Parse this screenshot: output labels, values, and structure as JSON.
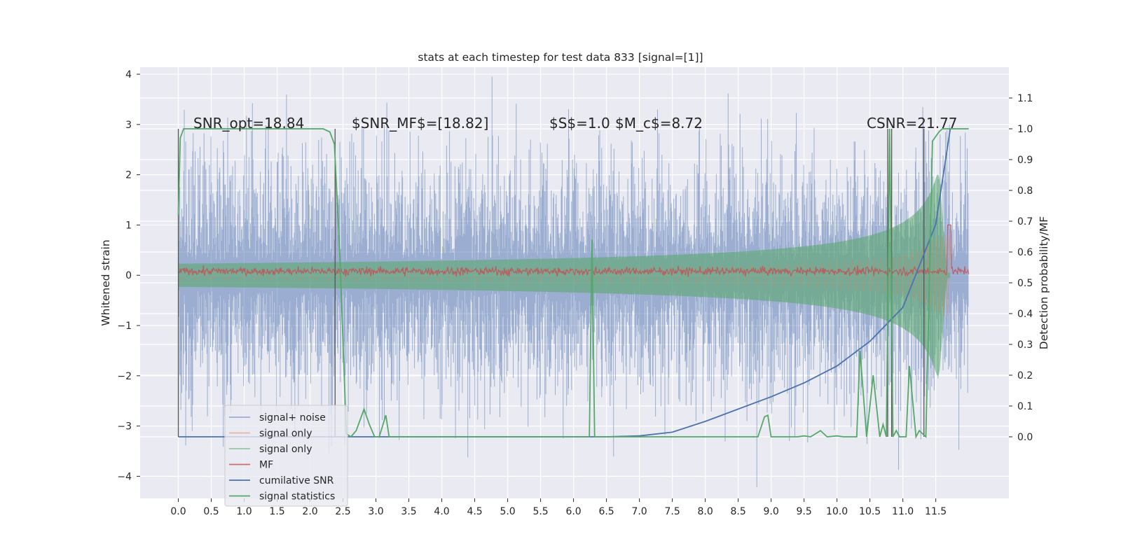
{
  "chart_data": {
    "type": "line",
    "title": "stats at each timestep for test data 833 [signal=[1]]",
    "ylabel": "Whitened strain",
    "ylabel_right": "Detection probability/MF",
    "xlim": [
      -0.58,
      12.61
    ],
    "ylim": [
      -4.44,
      4.14
    ],
    "ylim_right": [
      -0.2,
      1.2
    ],
    "x_ticks": [
      "0.0",
      "0.5",
      "1.0",
      "1.5",
      "2.0",
      "2.5",
      "3.0",
      "3.5",
      "4.0",
      "4.5",
      "5.0",
      "5.5",
      "6.0",
      "6.5",
      "7.0",
      "7.5",
      "8.0",
      "8.5",
      "9.0",
      "9.5",
      "10.0",
      "10.5",
      "11.0",
      "11.5"
    ],
    "y_ticks": [
      "4",
      "3",
      "2",
      "1",
      "0",
      "−1",
      "−2",
      "−3",
      "−4"
    ],
    "y_ticks_right": [
      "1.1",
      "1.0",
      "0.9",
      "0.8",
      "0.7",
      "0.6",
      "0.5",
      "0.4",
      "0.3",
      "0.2",
      "0.1",
      "0.0"
    ],
    "grid": true,
    "annotations": [
      "SNR_opt=18.84",
      "$SNR_MF$=[18.82]",
      "$S$=1.0",
      "$M_c$=8.72",
      "CSNR=21.77"
    ],
    "vertical_markers": [
      0.0,
      2.38,
      10.77,
      10.83,
      11.32
    ],
    "series": [
      {
        "name": "signal+ noise",
        "color": "#4c72b0",
        "role": "noise band",
        "approx_std": 0.85,
        "x_range": [
          0.0,
          12.0
        ]
      },
      {
        "name": "signal only",
        "color": "#dd8452",
        "role": "chirp",
        "amplitude_range": [
          0.05,
          1.9
        ],
        "x_range": [
          0.0,
          11.72
        ]
      },
      {
        "name": "signal only",
        "color": "#55a868",
        "role": "chirp band",
        "amplitude_range": [
          0.05,
          1.9
        ],
        "x_range": [
          0.0,
          11.72
        ]
      },
      {
        "name": "MF",
        "color": "#c44e52",
        "role": "matched filter",
        "approx_level": 0.08,
        "x_range": [
          0.0,
          12.0
        ]
      },
      {
        "name": "cumilative SNR",
        "color": "#4c72b0",
        "axis": "right",
        "x": [
          0.0,
          6.5,
          7.0,
          7.5,
          8.0,
          8.5,
          9.0,
          9.5,
          10.0,
          10.5,
          11.0,
          11.5,
          11.72
        ],
        "y": [
          0.0,
          0.0,
          0.003,
          0.015,
          0.05,
          0.09,
          0.13,
          0.175,
          0.23,
          0.31,
          0.42,
          0.69,
          1.0
        ]
      },
      {
        "name": "signal statistics",
        "color": "#55a868",
        "axis": "right",
        "x": [
          0.0,
          0.03,
          0.08,
          0.15,
          2.2,
          2.3,
          2.37,
          2.45,
          2.55,
          2.62,
          2.7,
          2.82,
          2.9,
          2.98,
          3.05,
          3.15,
          3.2,
          3.27,
          3.5,
          6.24,
          6.28,
          6.32,
          6.37,
          8.8,
          8.9,
          8.95,
          9.0,
          9.4,
          9.5,
          9.6,
          9.75,
          9.85,
          10.0,
          10.1,
          10.2,
          10.3,
          10.35,
          10.45,
          10.55,
          10.65,
          10.7,
          10.75,
          10.8,
          10.85,
          10.9,
          10.95,
          11.05,
          11.1,
          11.2,
          11.25,
          11.35,
          11.45,
          11.55,
          11.6,
          11.62,
          11.65,
          11.7,
          12.0
        ],
        "y": [
          0.72,
          0.97,
          1.0,
          1.0,
          1.0,
          0.99,
          0.95,
          0.6,
          0.01,
          0.0,
          0.02,
          0.09,
          0.04,
          0.0,
          0.0,
          0.07,
          0.0,
          0.0,
          0.0,
          0.0,
          0.64,
          0.0,
          0.0,
          0.0,
          0.065,
          0.07,
          0.0,
          0.0,
          0.003,
          0.0,
          0.02,
          0.0,
          0.003,
          0.0,
          0.0,
          0.0,
          0.28,
          0.0,
          0.2,
          0.0,
          0.04,
          0.0,
          1.0,
          0.0,
          0.02,
          0.0,
          0.0,
          0.23,
          0.0,
          0.02,
          0.0,
          0.96,
          0.99,
          1.0,
          1.0,
          1.0,
          1.0,
          1.0
        ]
      }
    ],
    "legend": {
      "placement": "lower-left",
      "entries": [
        "signal+ noise",
        "signal only",
        "signal only",
        "MF",
        "cumilative SNR",
        "signal statistics"
      ]
    }
  }
}
